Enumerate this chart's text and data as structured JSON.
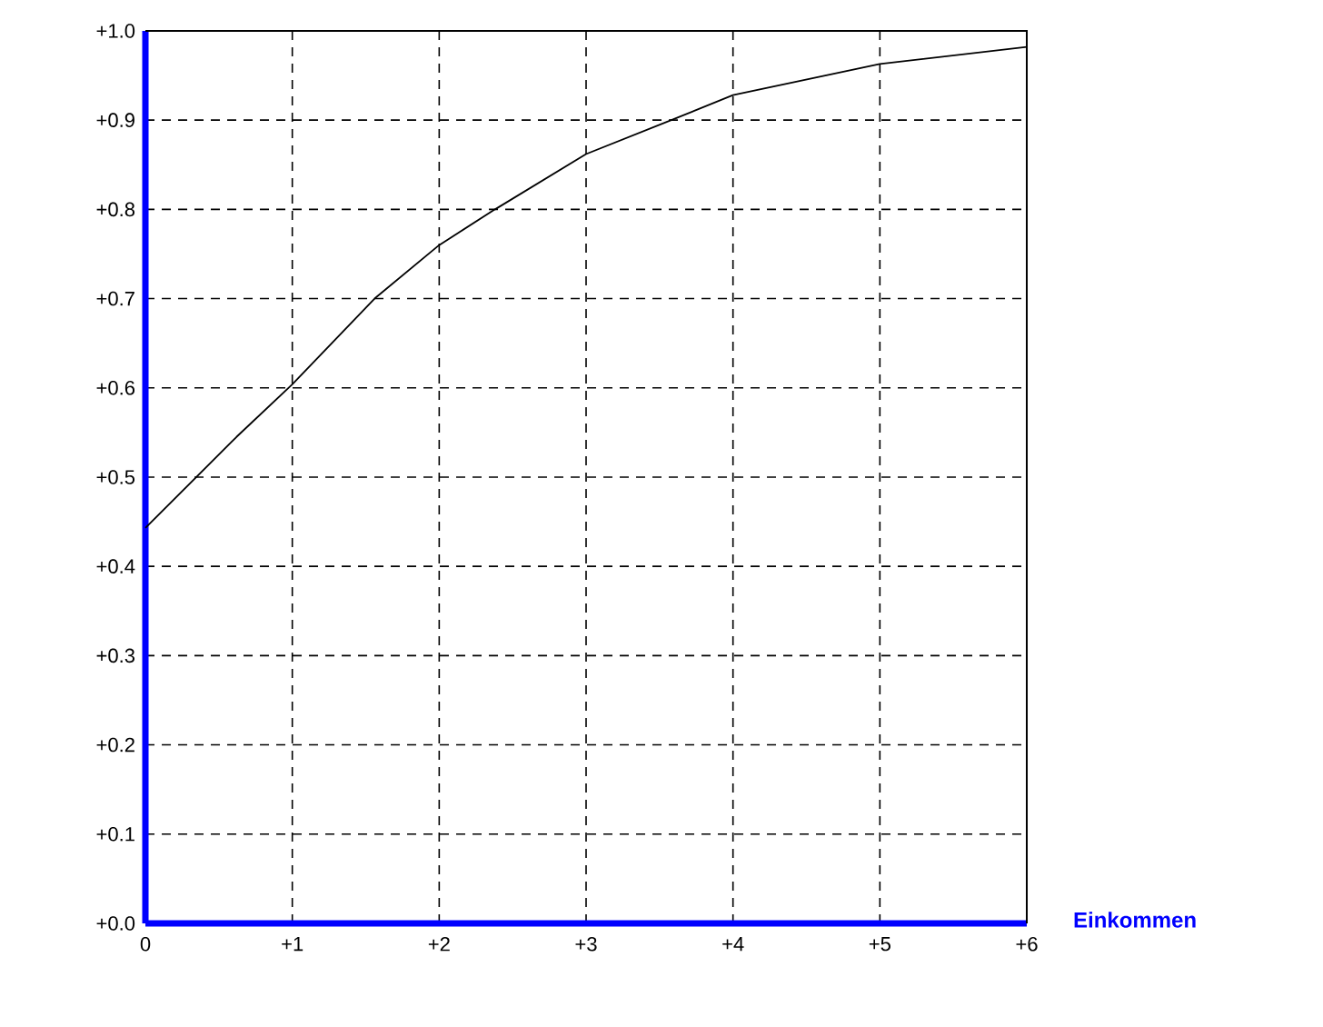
{
  "chart_data": {
    "type": "line",
    "xlabel": "Einkommen",
    "x": [
      0,
      0.62,
      1,
      1.56,
      2,
      2.38,
      3,
      3.58,
      4,
      5,
      6
    ],
    "values": [
      0.443,
      0.545,
      0.604,
      0.7,
      0.76,
      0.8,
      0.862,
      0.9,
      0.928,
      0.963,
      0.982
    ],
    "color": "#000000",
    "marker": "none",
    "line_style": "solid",
    "xlim": [
      0,
      6
    ],
    "ylim": [
      0,
      1
    ],
    "xticks": [
      0,
      {
        "value": 1,
        "label": "+1"
      },
      {
        "value": 2,
        "label": "+2"
      },
      {
        "value": 3,
        "label": "+3"
      },
      {
        "value": 4,
        "label": "+4"
      },
      {
        "value": 5,
        "label": "+5"
      },
      {
        "value": 6,
        "label": "+6"
      }
    ],
    "yticks": [
      {
        "value": 0,
        "label": "+0.0"
      },
      {
        "value": 0.1,
        "label": "+0.1"
      },
      {
        "value": 0.2,
        "label": "+0.2"
      },
      {
        "value": 0.3,
        "label": "+0.3"
      },
      {
        "value": 0.4,
        "label": "+0.4"
      },
      {
        "value": 0.5,
        "label": "+0.5"
      },
      {
        "value": 0.6,
        "label": "+0.6"
      },
      {
        "value": 0.7,
        "label": "+0.7"
      },
      {
        "value": 0.8,
        "label": "+0.8"
      },
      {
        "value": 0.9,
        "label": "+0.9"
      },
      {
        "value": 1.0,
        "label": "+1.0"
      }
    ],
    "grid": true
  }
}
